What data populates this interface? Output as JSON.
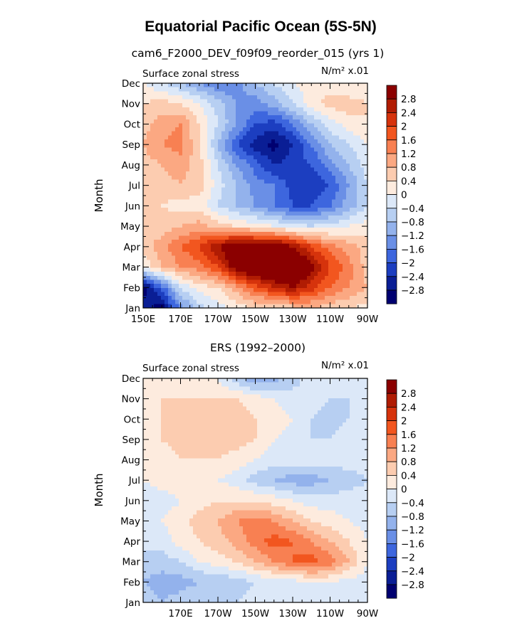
{
  "figure_title": "Equatorial Pacific Ocean (5S-5N)",
  "chart_data": [
    {
      "type": "heatmap",
      "subtitle": "cam6_F2000_DEV_f09f09_reorder_015 (yrs 1)",
      "left_label": "Surface zonal stress",
      "right_label": "N/m² x.01",
      "ylabel": "Month",
      "xlabel": "",
      "x_tick_labels": [
        "150E",
        "170E",
        "170W",
        "150W",
        "130W",
        "110W",
        "90W"
      ],
      "x_ticks": [
        150,
        170,
        190,
        210,
        230,
        250,
        270
      ],
      "xlim": [
        150,
        270
      ],
      "y_tick_labels": [
        "Jan",
        "Feb",
        "Mar",
        "Apr",
        "May",
        "Jun",
        "Jul",
        "Aug",
        "Sep",
        "Oct",
        "Nov",
        "Dec"
      ],
      "ylim": [
        1,
        12
      ],
      "colorbar": {
        "levels": [
          "2.8",
          "2.4",
          "2",
          "1.6",
          "1.2",
          "0.8",
          "0.4",
          "0",
          "−0.4",
          "−0.8",
          "−1.2",
          "−1.6",
          "−2",
          "−2.4",
          "−2.8"
        ],
        "colors": [
          "#8b0000",
          "#b01c03",
          "#d6330c",
          "#f2561f",
          "#f88052",
          "#fba882",
          "#fcccb0",
          "#fdebde",
          "#dce8f8",
          "#b7cff2",
          "#93b2ec",
          "#6a8fe6",
          "#3d66de",
          "#1c3ec0",
          "#0a1e95",
          "#000070"
        ]
      },
      "values": [
        [
          -2.6,
          -3.0,
          -1.4,
          -0.6,
          -0.2,
          0.2,
          0.4,
          0.4,
          0.6,
          0.8,
          0.6,
          0.4,
          0.2
        ],
        [
          -3.0,
          -1.8,
          -0.4,
          0.2,
          0.4,
          1.0,
          1.8,
          2.4,
          2.8,
          2.2,
          1.6,
          1.2,
          0.8
        ],
        [
          0.0,
          0.8,
          1.2,
          1.4,
          2.0,
          3.2,
          3.6,
          3.8,
          3.8,
          3.0,
          2.0,
          1.4,
          0.6
        ],
        [
          0.6,
          1.0,
          1.6,
          2.0,
          2.8,
          3.4,
          3.4,
          3.4,
          2.8,
          2.0,
          1.4,
          1.0,
          0.6
        ],
        [
          0.6,
          0.6,
          0.8,
          1.0,
          0.6,
          0.4,
          0.2,
          0.0,
          -0.2,
          -0.4,
          -0.2,
          0.0,
          0.2
        ],
        [
          0.4,
          0.4,
          0.2,
          0.2,
          -0.4,
          -0.8,
          -1.2,
          -1.6,
          -2.0,
          -2.0,
          -1.6,
          -1.0,
          -0.4
        ],
        [
          0.4,
          0.6,
          0.8,
          0.6,
          -0.2,
          -0.8,
          -1.4,
          -1.6,
          -2.2,
          -2.4,
          -2.0,
          -1.2,
          -0.4
        ],
        [
          0.6,
          0.8,
          1.0,
          0.6,
          -0.4,
          -1.2,
          -1.8,
          -2.4,
          -2.2,
          -2.0,
          -1.4,
          -0.8,
          -0.2
        ],
        [
          0.8,
          1.2,
          1.4,
          0.4,
          -0.8,
          -2.0,
          -2.6,
          -3.0,
          -2.4,
          -1.6,
          -0.8,
          -0.4,
          0.0
        ],
        [
          0.6,
          1.0,
          1.2,
          0.4,
          -0.4,
          -1.2,
          -2.0,
          -2.2,
          -1.6,
          -0.8,
          -0.2,
          0.2,
          0.4
        ],
        [
          0.4,
          0.6,
          0.4,
          0.0,
          -0.6,
          -1.2,
          -1.4,
          -1.0,
          -0.4,
          0.2,
          0.6,
          0.6,
          0.4
        ],
        [
          0.0,
          -0.4,
          -0.8,
          -1.2,
          -1.6,
          -1.4,
          -0.8,
          -0.4,
          0.0,
          0.2,
          0.2,
          0.0,
          0.0
        ]
      ]
    },
    {
      "type": "heatmap",
      "subtitle": "ERS (1992–2000)",
      "left_label": "Surface zonal stress",
      "right_label": "N/m² x.01",
      "ylabel": "Month",
      "xlabel": "",
      "x_tick_labels": [
        "170E",
        "170W",
        "150W",
        "130W",
        "110W",
        "90W"
      ],
      "x_ticks": [
        170,
        190,
        210,
        230,
        250,
        270
      ],
      "xlim": [
        150,
        270
      ],
      "y_tick_labels": [
        "Jan",
        "Feb",
        "Mar",
        "Apr",
        "May",
        "Jun",
        "Jul",
        "Aug",
        "Sep",
        "Oct",
        "Nov",
        "Dec"
      ],
      "ylim": [
        1,
        12
      ],
      "colorbar": {
        "levels": [
          "2.8",
          "2.4",
          "2",
          "1.6",
          "1.2",
          "0.8",
          "0.4",
          "0",
          "−0.4",
          "−0.8",
          "−1.2",
          "−1.6",
          "−2",
          "−2.4",
          "−2.8"
        ],
        "colors": [
          "#8b0000",
          "#b01c03",
          "#d6330c",
          "#f2561f",
          "#f88052",
          "#fba882",
          "#fcccb0",
          "#fdebde",
          "#dce8f8",
          "#b7cff2",
          "#93b2ec",
          "#6a8fe6",
          "#3d66de",
          "#1c3ec0",
          "#0a1e95",
          "#000070"
        ]
      },
      "values": [
        [
          -0.6,
          -0.8,
          -0.6,
          -0.4,
          -0.6,
          -0.4,
          -0.2,
          -0.2,
          -0.2,
          -0.2,
          -0.2,
          -0.2,
          -0.2
        ],
        [
          -0.8,
          -1.0,
          -1.0,
          -0.8,
          -0.8,
          -0.6,
          -0.4,
          -0.2,
          -0.2,
          0.0,
          0.0,
          -0.2,
          -0.2
        ],
        [
          -0.6,
          -0.6,
          -0.4,
          0.0,
          0.2,
          0.4,
          0.8,
          1.2,
          1.6,
          1.8,
          1.4,
          0.8,
          0.0
        ],
        [
          -0.2,
          -0.2,
          0.2,
          0.4,
          0.6,
          1.0,
          1.4,
          1.8,
          1.6,
          1.2,
          0.8,
          0.4,
          0.0
        ],
        [
          0.0,
          0.0,
          0.2,
          0.6,
          0.8,
          1.2,
          1.4,
          1.2,
          0.8,
          0.4,
          0.2,
          0.0,
          -0.2
        ],
        [
          -0.4,
          -0.2,
          0.0,
          0.2,
          0.4,
          0.4,
          0.4,
          0.2,
          0.0,
          -0.2,
          -0.2,
          -0.2,
          -0.2
        ],
        [
          0.0,
          0.2,
          0.2,
          0.2,
          0.0,
          -0.2,
          -0.6,
          -0.8,
          -1.0,
          -1.0,
          -0.8,
          -0.6,
          -0.4
        ],
        [
          0.2,
          0.2,
          0.4,
          0.4,
          0.4,
          0.2,
          0.0,
          -0.2,
          -0.2,
          -0.2,
          -0.2,
          -0.2,
          -0.2
        ],
        [
          0.2,
          0.4,
          0.6,
          0.6,
          0.6,
          0.6,
          0.4,
          0.0,
          -0.2,
          -0.4,
          -0.4,
          -0.2,
          -0.2
        ],
        [
          0.2,
          0.4,
          0.6,
          0.6,
          0.6,
          0.6,
          0.4,
          0.2,
          0.0,
          -0.4,
          -0.6,
          -0.4,
          -0.2
        ],
        [
          0.2,
          0.4,
          0.4,
          0.4,
          0.4,
          0.4,
          0.2,
          0.0,
          -0.2,
          -0.2,
          -0.4,
          -0.4,
          -0.2
        ],
        [
          0.2,
          0.2,
          0.2,
          0.2,
          0.0,
          -0.6,
          -1.2,
          -1.0,
          -0.6,
          -0.2,
          -0.2,
          -0.2,
          -0.2
        ]
      ]
    }
  ]
}
